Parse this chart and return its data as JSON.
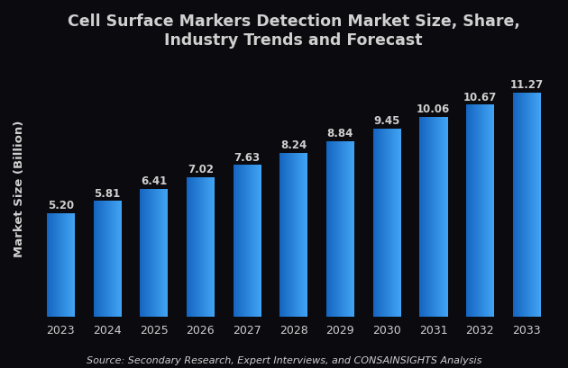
{
  "title": "Cell Surface Markers Detection Market Size, Share,\nIndustry Trends and Forecast",
  "ylabel": "Market Size (Billion)",
  "source": "Source: Secondary Research, Expert Interviews, and CONSAINSIGHTS Analysis",
  "years": [
    "2023",
    "2024",
    "2025",
    "2026",
    "2027",
    "2028",
    "2029",
    "2030",
    "2031",
    "2032",
    "2033"
  ],
  "values": [
    5.2,
    5.81,
    6.41,
    7.02,
    7.63,
    8.24,
    8.84,
    9.45,
    10.06,
    10.67,
    11.27
  ],
  "bar_color_left": "#1565C0",
  "bar_color_right": "#42A5F5",
  "background_color": "#0a0a0f",
  "text_color": "#d0d0d0",
  "title_color": "#d0d0d0",
  "ylim": [
    0,
    13
  ],
  "bar_width": 0.6,
  "title_fontsize": 12.5,
  "label_fontsize": 8.5,
  "tick_fontsize": 9,
  "source_fontsize": 8
}
